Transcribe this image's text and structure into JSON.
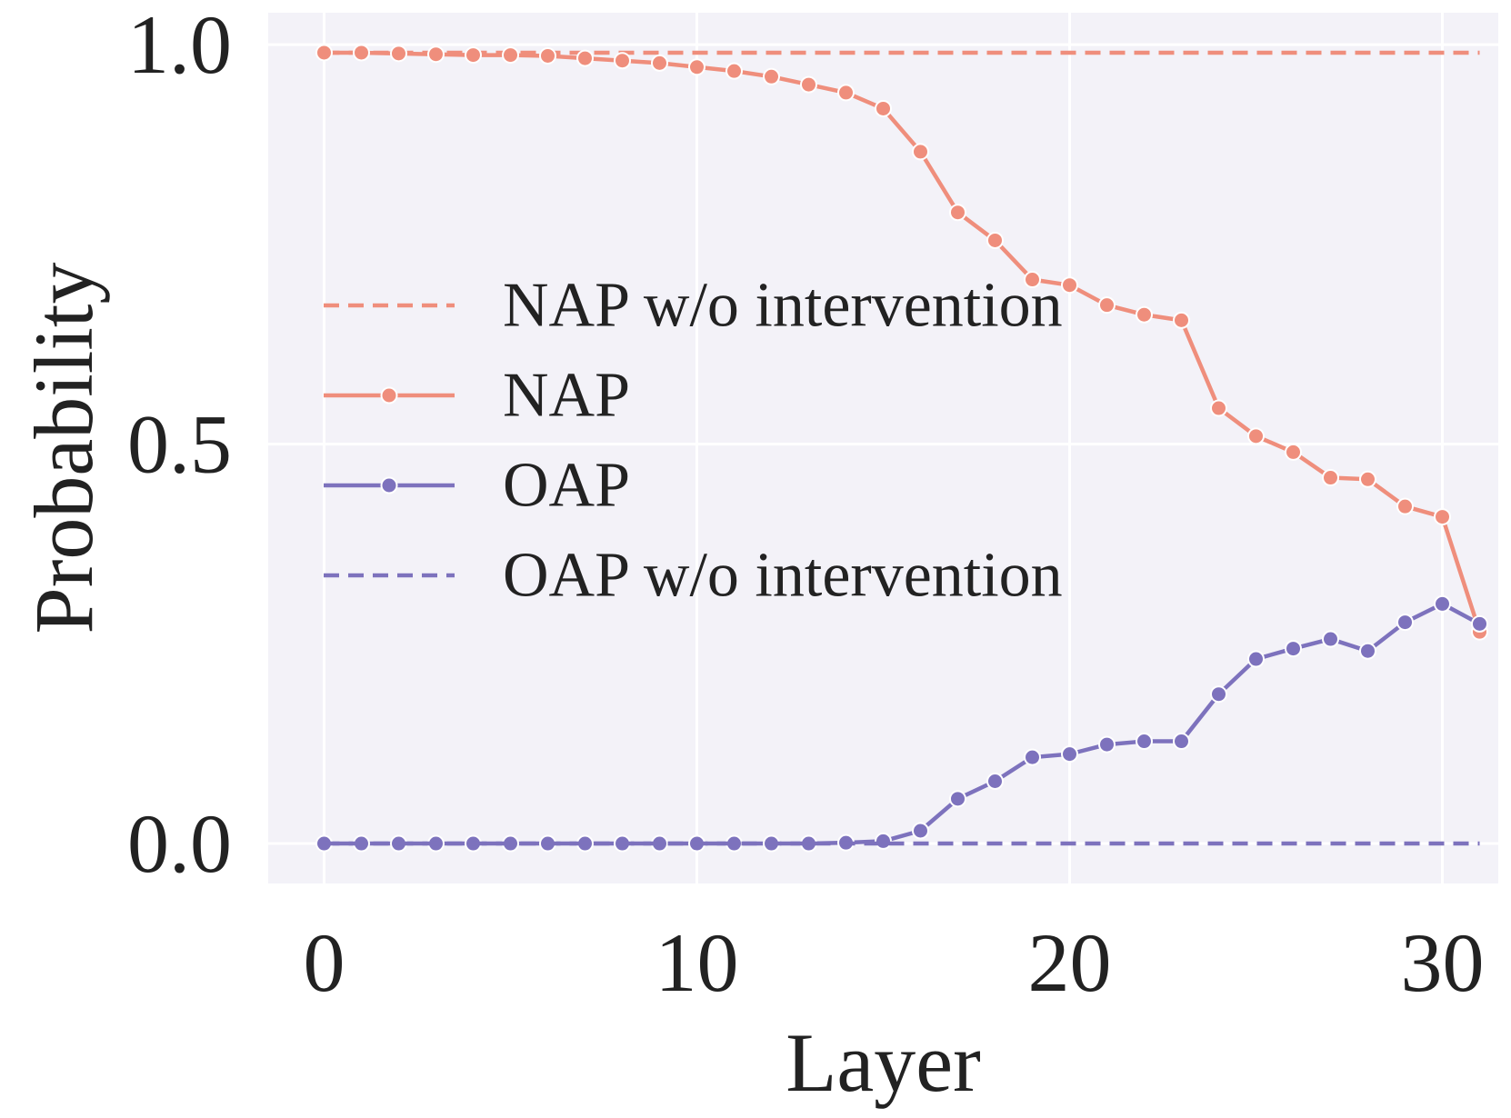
{
  "chart_data": {
    "type": "line",
    "title": "",
    "xlabel": "Layer",
    "ylabel": "Probability",
    "xlim": [
      -1.5,
      31.5
    ],
    "ylim": [
      -0.05,
      1.04
    ],
    "xticks": [
      0,
      10,
      20,
      30
    ],
    "xtick_labels": [
      "0",
      "10",
      "20",
      "30"
    ],
    "yticks": [
      0.0,
      0.5,
      1.0
    ],
    "ytick_labels": [
      "0.0",
      "0.5",
      "1.0"
    ],
    "grid": true,
    "legend_position": "center",
    "x": [
      0,
      1,
      2,
      3,
      4,
      5,
      6,
      7,
      8,
      9,
      10,
      11,
      12,
      13,
      14,
      15,
      16,
      17,
      18,
      19,
      20,
      21,
      22,
      23,
      24,
      25,
      26,
      27,
      28,
      29,
      30,
      31
    ],
    "series": [
      {
        "name": "NAP w/o intervention",
        "color": "#ef8e7c",
        "style": "dashed",
        "markers": false,
        "values": [
          0.99,
          0.99,
          0.99,
          0.99,
          0.99,
          0.99,
          0.99,
          0.99,
          0.99,
          0.99,
          0.99,
          0.99,
          0.99,
          0.99,
          0.99,
          0.99,
          0.99,
          0.99,
          0.99,
          0.99,
          0.99,
          0.99,
          0.99,
          0.99,
          0.99,
          0.99,
          0.99,
          0.99,
          0.99,
          0.99,
          0.99,
          0.99
        ]
      },
      {
        "name": "NAP",
        "color": "#ef8e7c",
        "style": "solid",
        "markers": true,
        "values": [
          0.99,
          0.99,
          0.989,
          0.988,
          0.987,
          0.987,
          0.986,
          0.983,
          0.98,
          0.977,
          0.972,
          0.967,
          0.96,
          0.95,
          0.94,
          0.92,
          0.866,
          0.79,
          0.755,
          0.706,
          0.699,
          0.674,
          0.662,
          0.655,
          0.545,
          0.51,
          0.49,
          0.458,
          0.456,
          0.422,
          0.409,
          0.265
        ]
      },
      {
        "name": "OAP",
        "color": "#7d72bd",
        "style": "solid",
        "markers": true,
        "values": [
          0.0,
          0.0,
          0.0,
          0.0,
          0.0,
          0.0,
          0.0,
          0.0,
          0.0,
          0.0,
          0.0,
          0.0,
          0.0,
          0.0,
          0.001,
          0.003,
          0.016,
          0.056,
          0.078,
          0.108,
          0.112,
          0.124,
          0.128,
          0.128,
          0.187,
          0.231,
          0.244,
          0.256,
          0.241,
          0.277,
          0.3,
          0.275
        ]
      },
      {
        "name": "OAP w/o intervention",
        "color": "#7d72bd",
        "style": "dashed",
        "markers": false,
        "values": [
          0.0,
          0.0,
          0.0,
          0.0,
          0.0,
          0.0,
          0.0,
          0.0,
          0.0,
          0.0,
          0.0,
          0.0,
          0.0,
          0.0,
          0.0,
          0.0,
          0.0,
          0.0,
          0.0,
          0.0,
          0.0,
          0.0,
          0.0,
          0.0,
          0.0,
          0.0,
          0.0,
          0.0,
          0.0,
          0.0,
          0.0,
          0.0
        ]
      }
    ],
    "legend_order": [
      0,
      1,
      2,
      3
    ]
  }
}
